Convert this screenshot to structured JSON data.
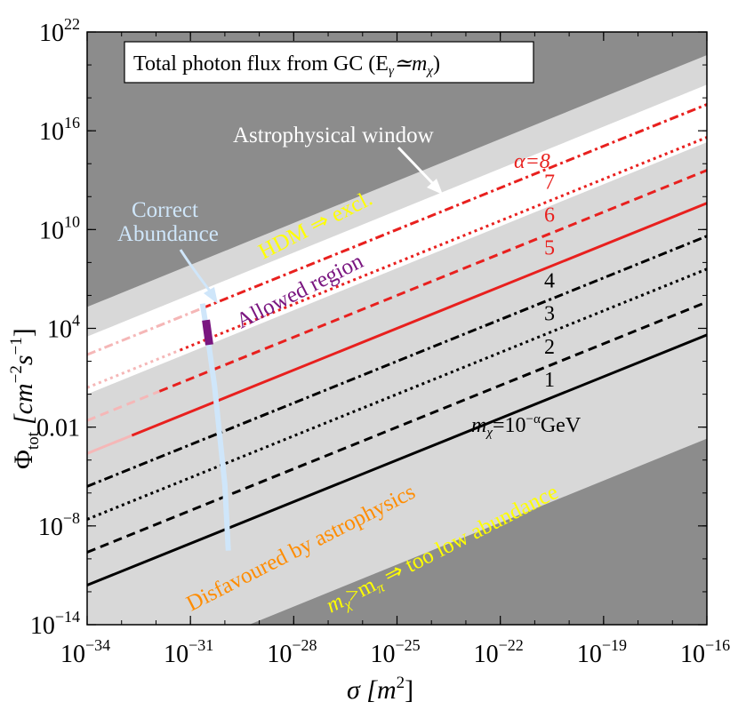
{
  "chart_data": {
    "type": "line",
    "title": "Total photon flux from GC (E",
    "title_gamma": "γ",
    "title_sim": "≃m",
    "title_chi": "χ",
    "title_close": ")",
    "xlabel": "σ [m",
    "xlabel_exp": "2",
    "xlabel_close": "]",
    "ylabel": "Φ",
    "ylabel_sub": "tot",
    "ylabel_units": "[cm",
    "ylabel_units_exp1": "−2",
    "ylabel_units_s": "s",
    "ylabel_units_exp2": "−1",
    "ylabel_units_close": "]",
    "x_log10_range": [
      -34,
      -16
    ],
    "y_log10_range": [
      -14,
      22
    ],
    "x_ticks": [
      {
        "base": "10",
        "exp": "−34",
        "log": -34
      },
      {
        "base": "10",
        "exp": "−31",
        "log": -31
      },
      {
        "base": "10",
        "exp": "−28",
        "log": -28
      },
      {
        "base": "10",
        "exp": "−25",
        "log": -25
      },
      {
        "base": "10",
        "exp": "−22",
        "log": -22
      },
      {
        "base": "10",
        "exp": "−19",
        "log": -19
      },
      {
        "base": "10",
        "exp": "−16",
        "log": -16
      }
    ],
    "y_ticks": [
      {
        "base": "10",
        "exp": "−14",
        "log": -14,
        "text": null
      },
      {
        "base": "10",
        "exp": "−8",
        "log": -8,
        "text": null
      },
      {
        "base": "",
        "exp": "",
        "log": -2,
        "text": "0.01"
      },
      {
        "base": "10",
        "exp": "4",
        "log": 4,
        "text": null
      },
      {
        "base": "10",
        "exp": "10",
        "log": 10,
        "text": null
      },
      {
        "base": "10",
        "exp": "16",
        "log": 16,
        "text": null
      },
      {
        "base": "10",
        "exp": "22",
        "log": 22,
        "text": null
      }
    ],
    "series": [
      {
        "name": "α=1",
        "label": "1",
        "style": "solid",
        "color": "#000000",
        "x_log10": [
          -34,
          -16
        ],
        "y_log10": [
          -11.6,
          3.6
        ]
      },
      {
        "name": "α=2",
        "label": "2",
        "style": "dashed",
        "color": "#000000",
        "x_log10": [
          -34,
          -16
        ],
        "y_log10": [
          -9.6,
          5.6
        ]
      },
      {
        "name": "α=3",
        "label": "3",
        "style": "dotted",
        "color": "#000000",
        "x_log10": [
          -34,
          -16
        ],
        "y_log10": [
          -7.6,
          7.6
        ]
      },
      {
        "name": "α=4",
        "label": "4",
        "style": "dashdot",
        "color": "#000000",
        "x_log10": [
          -34,
          -16
        ],
        "y_log10": [
          -5.6,
          9.6
        ]
      },
      {
        "name": "α=5",
        "label": "5",
        "style": "solid",
        "color": "#e8201e",
        "x_log10": [
          -34,
          -16
        ],
        "y_log10": [
          -3.6,
          11.6
        ]
      },
      {
        "name": "α=6",
        "label": "6",
        "style": "dashed",
        "color": "#e8201e",
        "x_log10": [
          -34,
          -16
        ],
        "y_log10": [
          -1.6,
          13.6
        ]
      },
      {
        "name": "α=7",
        "label": "7",
        "style": "dotted",
        "color": "#e8201e",
        "x_log10": [
          -34,
          -16
        ],
        "y_log10": [
          0.4,
          15.6
        ]
      },
      {
        "name": "α=8",
        "label": "α=8",
        "style": "dashdot",
        "color": "#e8201e",
        "x_log10": [
          -34,
          -16
        ],
        "y_log10": [
          2.4,
          17.6
        ]
      }
    ],
    "correct_abundance_curve": {
      "x_log10": [
        -30.65,
        -30.5,
        -30.3,
        -30.15,
        -30.0,
        -29.95,
        -29.9
      ],
      "y_log10": [
        5.5,
        3.5,
        0.5,
        -2.5,
        -5.5,
        -7.5,
        -9.5
      ]
    },
    "allowed_region_segment": {
      "x_log10": [
        -30.55,
        -30.45
      ],
      "y_log10": [
        4.5,
        3.0
      ]
    },
    "annotations": {
      "mass_label_prefix": "m",
      "mass_label_chi": "χ",
      "mass_label_eq": "=10",
      "mass_label_exp": "−α",
      "mass_label_unit": "GeV",
      "astrophysical_window": "Astrophysical window",
      "correct_abundance_line1": "Correct",
      "correct_abundance_line2": "Abundance",
      "hdm_excl": "HDM ⇒ excl.",
      "allowed_region": "Allowed region",
      "disfavoured": "Disfavoured by astrophysics",
      "mpi_m": "m",
      "mpi_chi": "χ",
      "mpi_gt": ">m",
      "mpi_pi": "π",
      "mpi_rest": " ⇒ too low abundance"
    },
    "colors": {
      "dark_bg": "#8c8c8c",
      "light_band": "#d8d8d8",
      "white_window": "#ffffff",
      "red": "#e8201e",
      "pink": "#f5b7b7",
      "light_blue": "#cfe6fa",
      "purple": "#7a1680",
      "yellow": "#ffff00",
      "orange": "#ff8c00"
    }
  }
}
